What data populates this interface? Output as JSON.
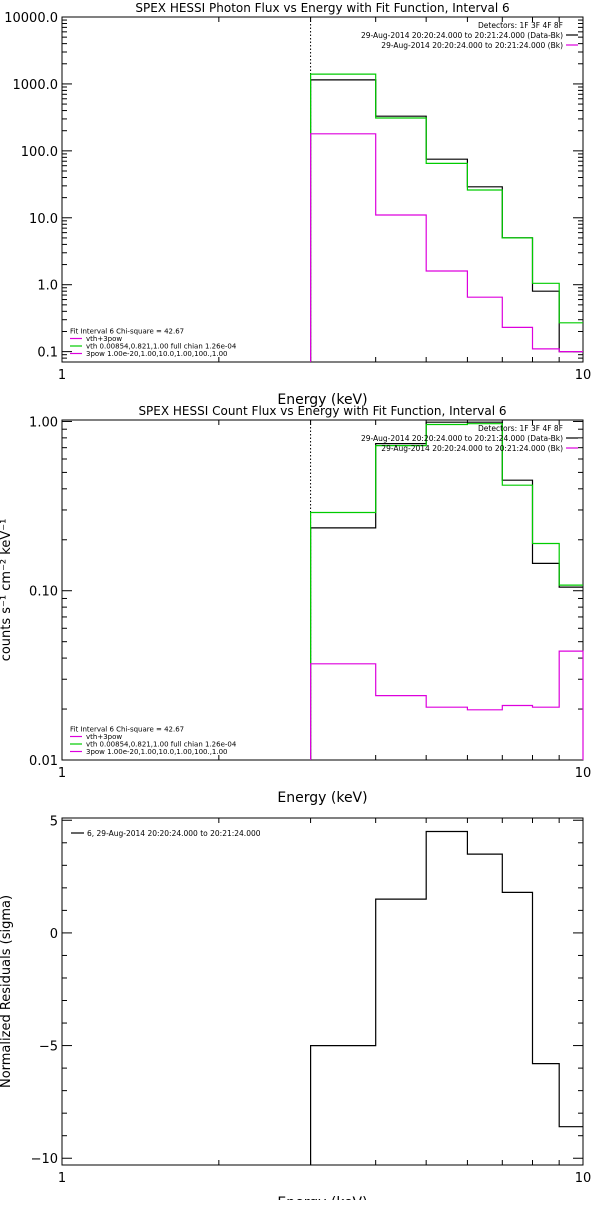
{
  "colors": {
    "axes": "#000000",
    "black": "#000000",
    "green": "#00cc00",
    "magenta": "#dd00dd",
    "dotted": "#000000"
  },
  "chart_data": [
    {
      "type": "line",
      "step": true,
      "title": "SPEX HESSI Photon Flux vs Energy with Fit Function, Interval 6",
      "xlabel": "Energy (keV)",
      "ylabel": "",
      "x_scale": "log",
      "y_scale": "log",
      "xlim": [
        1,
        10
      ],
      "ylim": [
        0.07,
        10000
      ],
      "x_ticks": [
        {
          "v": 1,
          "label": "1"
        },
        {
          "v": 10,
          "label": "10"
        }
      ],
      "y_ticks": [
        {
          "v": 0.1,
          "label": "0.1"
        },
        {
          "v": 1,
          "label": "1.0"
        },
        {
          "v": 10,
          "label": "10.0"
        },
        {
          "v": 100,
          "label": "100.0"
        },
        {
          "v": 1000,
          "label": "1000.0"
        },
        {
          "v": 10000,
          "label": "10000.0"
        }
      ],
      "vline_x": 3.0,
      "legend_top": [
        {
          "text": "Detectors: 1F 3F 4F 8F",
          "color": "",
          "line": false
        },
        {
          "text": "29-Aug-2014 20:20:24.000 to 20:21:24.000 (Data-Bk)",
          "color": "#000000",
          "line": true
        },
        {
          "text": "29-Aug-2014 20:20:24.000 to 20:21:24.000 (Bk)",
          "color": "#dd00dd",
          "line": true
        }
      ],
      "legend_bottom": [
        {
          "text": "Fit Interval 6   Chi-square = 42.67",
          "color": "",
          "line": false
        },
        {
          "text": "vth+3pow",
          "color": "#dd00dd",
          "line": true
        },
        {
          "text": "vth 0.00854,0.821,1.00   full chian 1.26e-04",
          "color": "#00cc00",
          "line": true
        },
        {
          "text": "3pow 1.00e-20,1.00,10.0,1.00,100.,1.00",
          "color": "#dd00dd",
          "line": true
        }
      ],
      "series": [
        {
          "color": "#000000",
          "end_drop": false,
          "edges": [
            3,
            4,
            5,
            6,
            7,
            8,
            9,
            10
          ],
          "values": [
            1150,
            330,
            75,
            29,
            5,
            0.8,
            0.1
          ]
        },
        {
          "color": "#00cc00",
          "end_drop": false,
          "edges": [
            3,
            4,
            5,
            6,
            7,
            8,
            9,
            10
          ],
          "values": [
            1400,
            310,
            65,
            26,
            5,
            1.05,
            0.27
          ]
        },
        {
          "color": "#dd00dd",
          "end_drop": false,
          "edges": [
            3,
            4,
            5,
            6,
            7,
            8,
            9,
            10
          ],
          "values": [
            180,
            11,
            1.6,
            0.65,
            0.23,
            0.11,
            0.1
          ]
        }
      ]
    },
    {
      "type": "line",
      "step": true,
      "title": "SPEX HESSI Count Flux vs Energy with Fit Function, Interval 6",
      "xlabel": "Energy (keV)",
      "ylabel": "counts s⁻¹ cm⁻² keV⁻¹",
      "x_scale": "log",
      "y_scale": "log",
      "xlim": [
        1,
        10
      ],
      "ylim": [
        0.01,
        1.02
      ],
      "x_ticks": [
        {
          "v": 1,
          "label": "1"
        },
        {
          "v": 10,
          "label": "10"
        }
      ],
      "y_ticks": [
        {
          "v": 0.01,
          "label": "0.01"
        },
        {
          "v": 0.1,
          "label": "0.10"
        },
        {
          "v": 1,
          "label": "1.00"
        }
      ],
      "vline_x": 3.0,
      "legend_top": [
        {
          "text": "Detectors: 1F 3F 4F 8F",
          "color": "",
          "line": false
        },
        {
          "text": "29-Aug-2014 20:20:24.000 to 20:21:24.000 (Data-Bk)",
          "color": "#000000",
          "line": true
        },
        {
          "text": "29-Aug-2014 20:20:24.000 to 20:21:24.000 (Bk)",
          "color": "#dd00dd",
          "line": true
        }
      ],
      "legend_bottom": [
        {
          "text": "Fit Interval 6   Chi-square = 42.67",
          "color": "",
          "line": false
        },
        {
          "text": "vth+3pow",
          "color": "#dd00dd",
          "line": true
        },
        {
          "text": "vth 0.00854,0.821,1.00   full chian 1.26e-04",
          "color": "#00cc00",
          "line": true
        },
        {
          "text": "3pow 1.00e-20,1.00,10.0,1.00,100.,1.00",
          "color": "#dd00dd",
          "line": true
        }
      ],
      "series": [
        {
          "color": "#000000",
          "end_drop": false,
          "edges": [
            3,
            4,
            5,
            6,
            7,
            8,
            9,
            10
          ],
          "values": [
            0.235,
            0.74,
            0.99,
            0.99,
            0.45,
            0.145,
            0.105
          ]
        },
        {
          "color": "#00cc00",
          "end_drop": false,
          "edges": [
            3,
            4,
            5,
            6,
            7,
            8,
            9,
            10
          ],
          "values": [
            0.29,
            0.72,
            0.96,
            0.97,
            0.42,
            0.19,
            0.108
          ]
        },
        {
          "color": "#dd00dd",
          "end_drop": true,
          "edges": [
            3,
            4,
            5,
            6,
            7,
            8,
            9,
            10
          ],
          "values": [
            0.037,
            0.024,
            0.0205,
            0.0198,
            0.021,
            0.0205,
            0.044
          ]
        }
      ]
    },
    {
      "type": "line",
      "step": true,
      "title": "",
      "xlabel": "Energy (keV)",
      "ylabel": "Normalized Residuals (sigma)",
      "x_scale": "log",
      "y_scale": "linear",
      "xlim": [
        1,
        10
      ],
      "ylim": [
        -10.3,
        5.1
      ],
      "x_ticks": [
        {
          "v": 1,
          "label": "1"
        },
        {
          "v": 10,
          "label": "10"
        }
      ],
      "y_ticks": [
        {
          "v": -10,
          "label": "−10"
        },
        {
          "v": -5,
          "label": "−5"
        },
        {
          "v": 0,
          "label": "0"
        },
        {
          "v": 5,
          "label": "5"
        }
      ],
      "vline_x": null,
      "legend_top": [],
      "legend_topleft": [
        {
          "text": "6, 29-Aug-2014 20:20:24.000 to 20:21:24.000",
          "color": "#000000",
          "line": true
        }
      ],
      "legend_bottom": [],
      "series": [
        {
          "color": "#000000",
          "end_drop": false,
          "start_drop": true,
          "edges": [
            3,
            4,
            5,
            6,
            7,
            8,
            9,
            10
          ],
          "values": [
            -5.0,
            1.5,
            4.5,
            3.5,
            1.8,
            -5.8,
            -8.6
          ]
        }
      ]
    }
  ]
}
